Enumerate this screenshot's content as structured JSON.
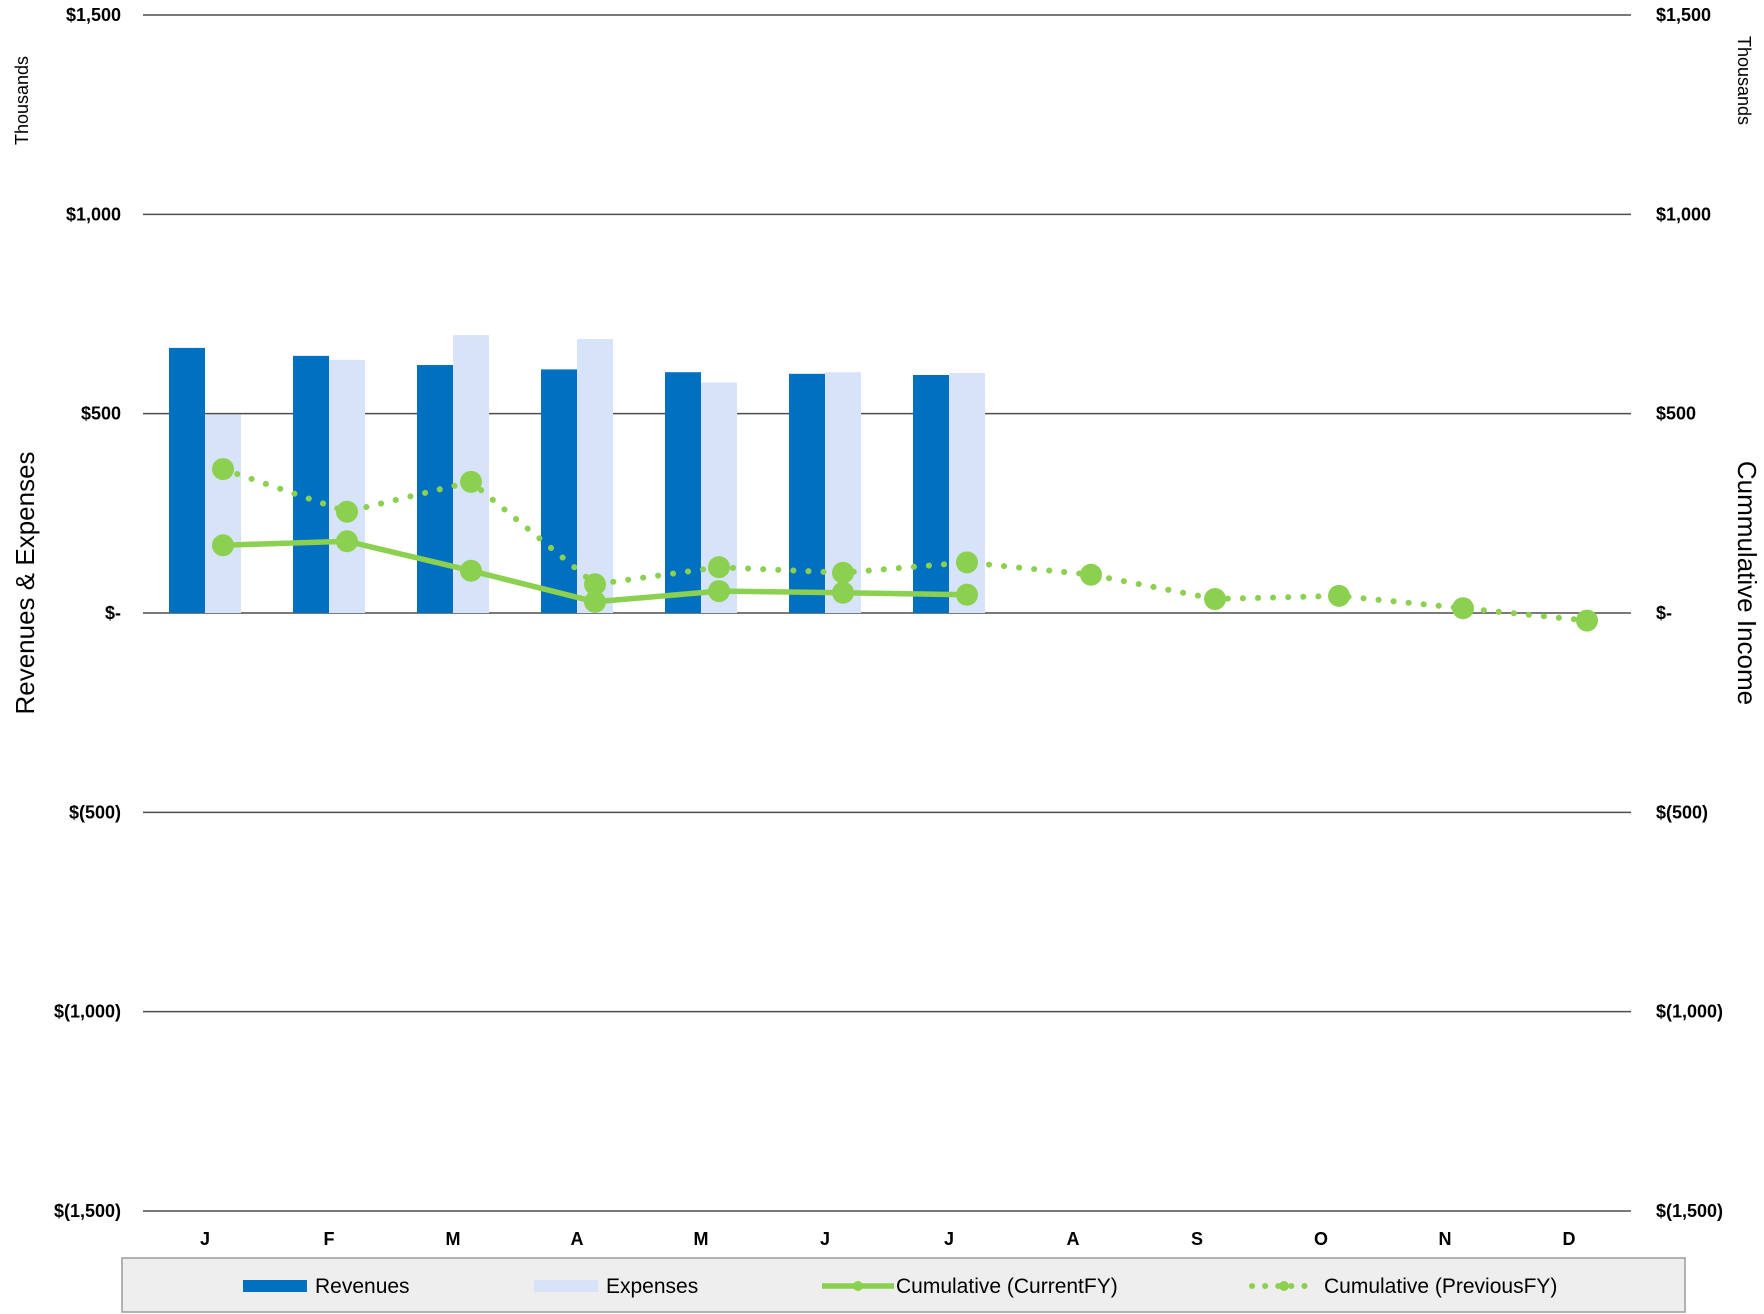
{
  "chart_data": {
    "type": "bar",
    "categories": [
      "J",
      "F",
      "M",
      "A",
      "M",
      "J",
      "J",
      "A",
      "S",
      "O",
      "N",
      "D"
    ],
    "y_left": {
      "label": "Revenues & Expenses",
      "unit": "Thousands",
      "ylim": [
        -1500,
        1500
      ],
      "ticks": [
        1500,
        1000,
        500,
        0,
        -500,
        -1000,
        -1500
      ],
      "tick_labels": [
        "$1,500",
        "$1,000",
        "$500",
        "$-",
        "$(500)",
        "$(1,000)",
        "$(1,500)"
      ]
    },
    "y_right": {
      "label": "Cummulative Income",
      "unit": "Thousands",
      "ylim": [
        -1500,
        1500
      ],
      "ticks": [
        1500,
        1000,
        500,
        0,
        -500,
        -1000,
        -1500
      ],
      "tick_labels": [
        "$1,500",
        "$1,000",
        "$500",
        "$-",
        "$(500)",
        "$(1,000)",
        "$(1,500)"
      ]
    },
    "grid": true,
    "legend_position": "bottom",
    "series": [
      {
        "name": "Revenues",
        "type": "bar",
        "axis": "left",
        "color": "#0070c0",
        "values": [
          665,
          645,
          622,
          611,
          604,
          600,
          597,
          null,
          null,
          null,
          null,
          null
        ]
      },
      {
        "name": "Expenses",
        "type": "bar",
        "axis": "left",
        "color": "#d6e3f8",
        "values": [
          497,
          635,
          697,
          687,
          578,
          604,
          602,
          null,
          null,
          null,
          null,
          null
        ]
      },
      {
        "name": "Cumulative (CurrentFY)",
        "type": "line",
        "style": "solid",
        "axis": "right",
        "color": "#8cd04f",
        "values": [
          170,
          180,
          106,
          28,
          55,
          51,
          46,
          null,
          null,
          null,
          null,
          null
        ]
      },
      {
        "name": "Cumulative (PreviousFY)",
        "type": "line",
        "style": "dotted",
        "axis": "right",
        "color": "#8cd04f",
        "values": [
          361,
          254,
          329,
          72,
          115,
          101,
          127,
          96,
          35,
          43,
          12,
          -19
        ]
      }
    ]
  }
}
